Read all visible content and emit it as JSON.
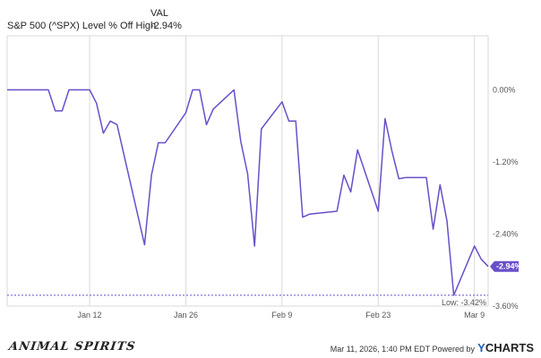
{
  "legend": {
    "header": "VAL",
    "series_label": "S&P 500 (^SPX) Level % Off High",
    "series_value": "-2.94%"
  },
  "footer": {
    "brand": "ANIMAL SPIRITS",
    "timestamp": "Mar 11, 2026, 1:40 PM EDT Powered by",
    "logo_prefix": "Y",
    "logo_suffix": "CHARTS"
  },
  "colors": {
    "line": "#6a4fc9",
    "grid": "#d9d9d9",
    "low_line": "#6a4fc9"
  },
  "chart_data": {
    "type": "line",
    "title": "",
    "xlabel": "",
    "ylabel": "",
    "ylim": [
      -3.6,
      0.9
    ],
    "yticks": [
      0.0,
      -1.2,
      -2.4,
      -3.6
    ],
    "ytick_labels": [
      "0.00%",
      "-1.20%",
      "-2.40%",
      "-3.60%"
    ],
    "xlim": [
      "2025-12-31",
      "2026-03-11"
    ],
    "xticks": [
      "2026-01-12",
      "2026-01-26",
      "2026-02-09",
      "2026-02-23",
      "2026-03-09"
    ],
    "xtick_labels": [
      "Jan 12",
      "Jan 26",
      "Feb 9",
      "Feb 23",
      "Mar 9"
    ],
    "grid": true,
    "low_label": "Low: -3.42%",
    "low_value": -3.42,
    "last_label": "-2.94%",
    "last_value": -2.94,
    "series": [
      {
        "name": "S&P 500 (^SPX) Level % Off High",
        "x": [
          "2025-12-31",
          "2026-01-02",
          "2026-01-05",
          "2026-01-06",
          "2026-01-07",
          "2026-01-08",
          "2026-01-09",
          "2026-01-12",
          "2026-01-13",
          "2026-01-14",
          "2026-01-15",
          "2026-01-16",
          "2026-01-20",
          "2026-01-21",
          "2026-01-22",
          "2026-01-23",
          "2026-01-26",
          "2026-01-27",
          "2026-01-28",
          "2026-01-29",
          "2026-01-30",
          "2026-02-02",
          "2026-02-03",
          "2026-02-04",
          "2026-02-05",
          "2026-02-06",
          "2026-02-09",
          "2026-02-10",
          "2026-02-11",
          "2026-02-12",
          "2026-02-13",
          "2026-02-17",
          "2026-02-18",
          "2026-02-19",
          "2026-02-20",
          "2026-02-23",
          "2026-02-24",
          "2026-02-25",
          "2026-02-26",
          "2026-02-27",
          "2026-03-02",
          "2026-03-03",
          "2026-03-04",
          "2026-03-05",
          "2026-03-06",
          "2026-03-09",
          "2026-03-10",
          "2026-03-11"
        ],
        "y": [
          0.0,
          0.0,
          0.0,
          0.0,
          -0.35,
          -0.35,
          0.0,
          0.0,
          -0.22,
          -0.72,
          -0.52,
          -0.58,
          -2.58,
          -1.42,
          -0.88,
          -0.88,
          -0.38,
          0.0,
          0.0,
          -0.58,
          -0.32,
          0.0,
          -0.86,
          -1.4,
          -2.6,
          -0.65,
          -0.2,
          -0.52,
          -0.52,
          -2.12,
          -2.07,
          -2.02,
          -1.42,
          -1.7,
          -1.0,
          -2.02,
          -0.48,
          -1.02,
          -1.48,
          -1.46,
          -1.46,
          -2.32,
          -1.58,
          -2.18,
          -3.42,
          -2.6,
          -2.82,
          -2.94
        ]
      }
    ]
  }
}
